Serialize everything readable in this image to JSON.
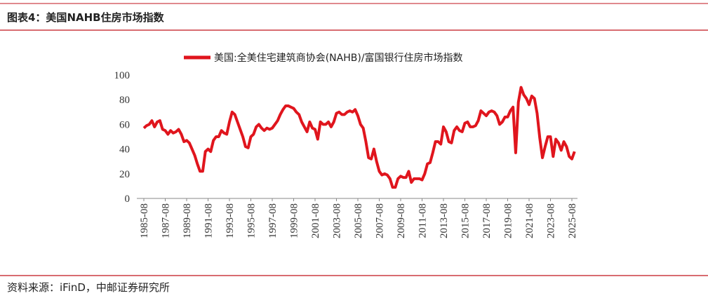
{
  "chart_data": {
    "type": "line",
    "title": "图表4：美国NAHB住房市场指数",
    "source": "资料来源：iFinD，中邮证券研究所",
    "categories": [
      "1985-08",
      null,
      null,
      null,
      null,
      null,
      null,
      null,
      "1987-08",
      null,
      null,
      null,
      null,
      null,
      null,
      null,
      "1989-08",
      null,
      null,
      null,
      null,
      null,
      null,
      null,
      "1991-08",
      null,
      null,
      null,
      null,
      null,
      null,
      null,
      "1993-08",
      null,
      null,
      null,
      null,
      null,
      null,
      null,
      "1995-08",
      null,
      null,
      null,
      null,
      null,
      null,
      null,
      "1997-08",
      null,
      null,
      null,
      null,
      null,
      null,
      null,
      "1999-08",
      null,
      null,
      null,
      null,
      null,
      null,
      null,
      "2001-08",
      null,
      null,
      null,
      null,
      null,
      null,
      null,
      "2003-08",
      null,
      null,
      null,
      null,
      null,
      null,
      null,
      "2005-08",
      null,
      null,
      null,
      null,
      null,
      null,
      null,
      "2007-08",
      null,
      null,
      null,
      null,
      null,
      null,
      null,
      "2009-08",
      null,
      null,
      null,
      null,
      null,
      null,
      null,
      "2011-08",
      null,
      null,
      null,
      null,
      null,
      null,
      null,
      "2013-08",
      null,
      null,
      null,
      null,
      null,
      null,
      null,
      "2015-08",
      null,
      null,
      null,
      null,
      null,
      null,
      null,
      "2017-08",
      null,
      null,
      null,
      null,
      null,
      null,
      null,
      "2019-08",
      null,
      null,
      null,
      null,
      null,
      null,
      null,
      "2021-08",
      null,
      null,
      null,
      null,
      null,
      null,
      null,
      "2023-08",
      null,
      null,
      null,
      null,
      null,
      null,
      null,
      "2025-08",
      null
    ],
    "series": [
      {
        "name": "美国:全美住宅建筑商协会(NAHB)/富国银行住房市场指数",
        "color": "#e0151d",
        "values": [
          57,
          59,
          60,
          63,
          58,
          62,
          63,
          56,
          55,
          52,
          55,
          53,
          54,
          56,
          52,
          46,
          47,
          45,
          40,
          35,
          28,
          22,
          22,
          38,
          40,
          38,
          47,
          50,
          50,
          55,
          53,
          52,
          62,
          70,
          68,
          62,
          56,
          50,
          42,
          41,
          50,
          52,
          58,
          60,
          57,
          55,
          57,
          56,
          57,
          60,
          63,
          68,
          72,
          75,
          75,
          74,
          73,
          70,
          68,
          62,
          58,
          54,
          62,
          57,
          56,
          48,
          62,
          60,
          60,
          62,
          58,
          62,
          69,
          70,
          68,
          68,
          70,
          71,
          70,
          72,
          67,
          60,
          57,
          46,
          33,
          32,
          40,
          30,
          22,
          19,
          20,
          19,
          16,
          9,
          9,
          16,
          18,
          17,
          17,
          22,
          13,
          16,
          16,
          16,
          15,
          20,
          28,
          29,
          37,
          46,
          46,
          44,
          58,
          54,
          46,
          45,
          55,
          58,
          55,
          54,
          61,
          62,
          58,
          58,
          59,
          63,
          71,
          69,
          67,
          70,
          71,
          70,
          67,
          60,
          62,
          66,
          66,
          71,
          74,
          37,
          78,
          90,
          84,
          81,
          76,
          83,
          81,
          69,
          49,
          33,
          42,
          50,
          50,
          34,
          48,
          45,
          39,
          46,
          42,
          34,
          32,
          38
        ]
      }
    ],
    "ylim": [
      0,
      100
    ],
    "yticks": [
      0,
      20,
      40,
      60,
      80,
      100
    ],
    "grid": false
  }
}
